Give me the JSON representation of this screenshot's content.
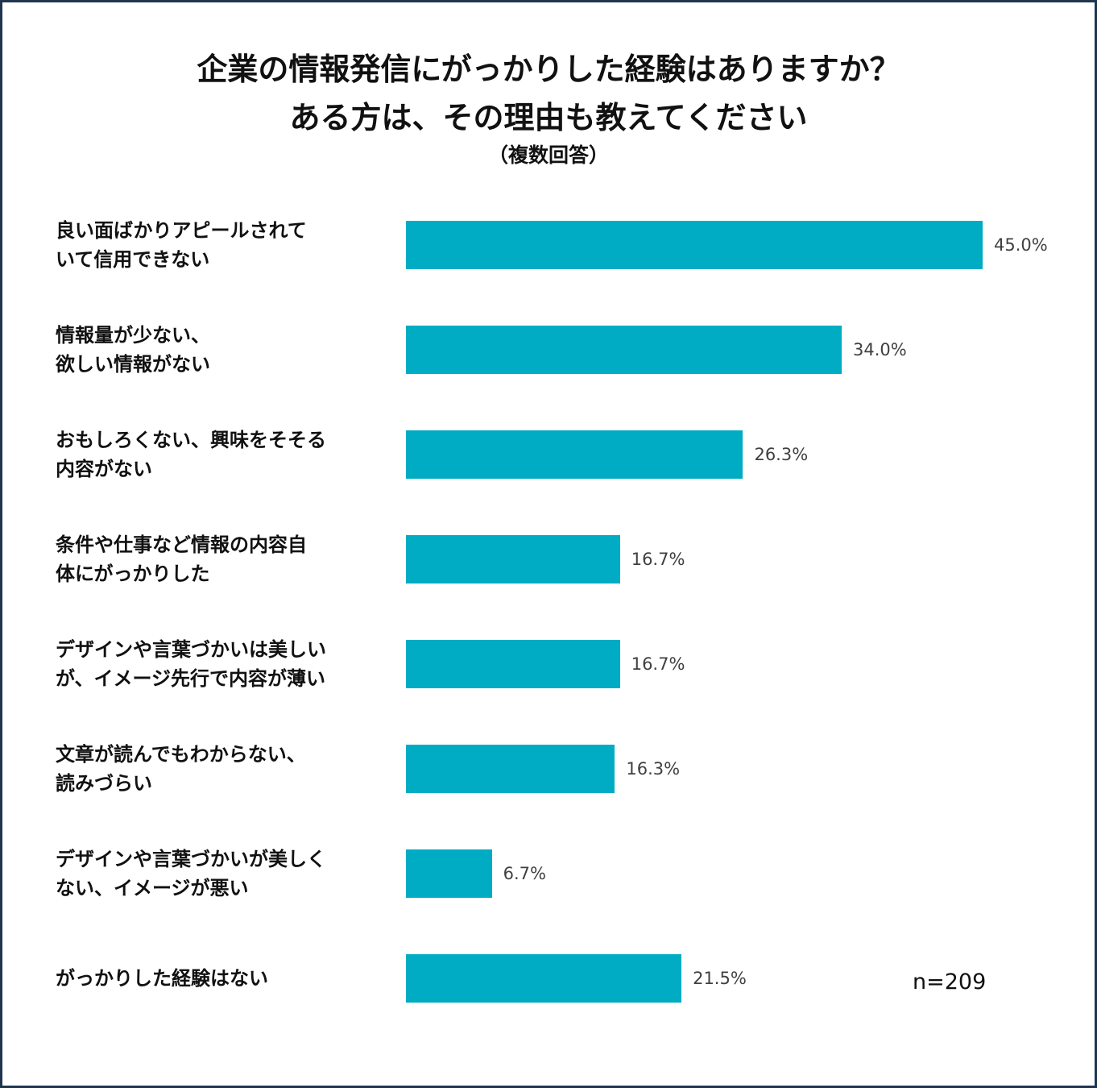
{
  "chart_data": {
    "type": "bar",
    "title": [
      "企業の情報発信にがっかりした経験はありますか？",
      "ある方は、その理由も教えてください"
    ],
    "subtitle": "（複数回答）",
    "categories": [
      "良い面ばかりアピールされて\nいて信用できない",
      "情報量が少ない、\n欲しい情報がない",
      "おもしろくない、興味をそそる\n内容がない",
      "条件や仕事など情報の内容自\n体にがっかりした",
      "デザインや言葉づかいは美しい\nが、イメージ先行で内容が薄い",
      "文章が読んでもわからない、\n読みづらい",
      "デザインや言葉づかいが美しく\nない、イメージが悪い",
      "がっかりした経験はない"
    ],
    "values": [
      45.0,
      34.0,
      26.3,
      16.7,
      16.7,
      16.3,
      6.7,
      21.5
    ],
    "value_labels": [
      "45.0%",
      "34.0%",
      "26.3%",
      "16.7%",
      "16.7%",
      "16.3%",
      "6.7%",
      "21.5%"
    ],
    "color": "#00acc4",
    "annotation": "n=209"
  }
}
